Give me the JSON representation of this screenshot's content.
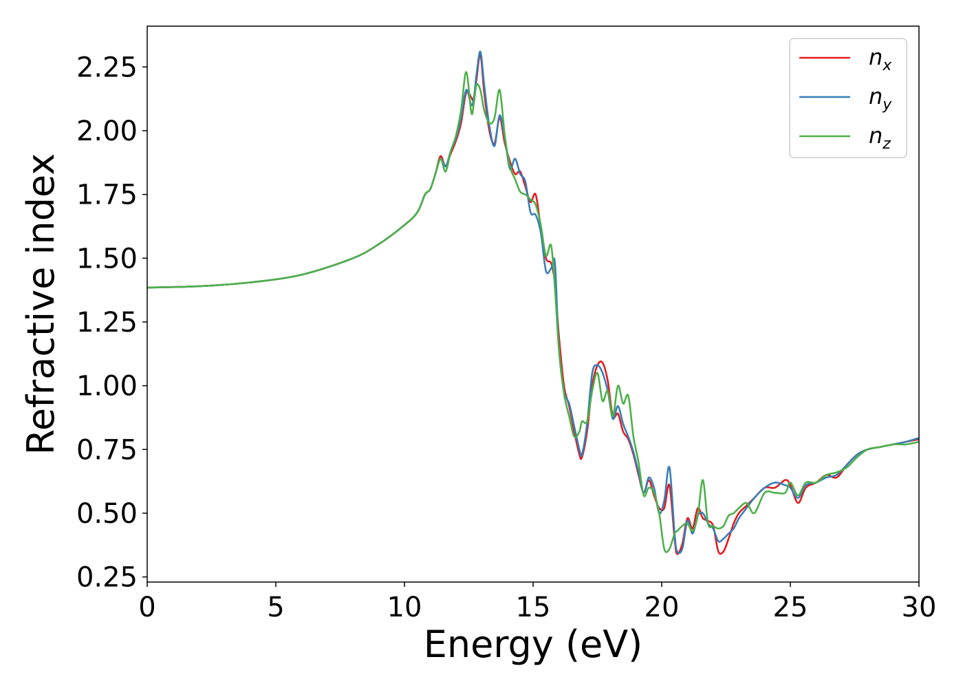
{
  "chart_data": {
    "type": "line",
    "title": "",
    "xlabel": "Energy (eV)",
    "ylabel": "Refractive index",
    "xlim": [
      0,
      30
    ],
    "ylim": [
      0.23,
      2.41
    ],
    "xticks": [
      0,
      5,
      10,
      15,
      20,
      25,
      30
    ],
    "yticks": [
      0.25,
      0.5,
      0.75,
      1.0,
      1.25,
      1.5,
      1.75,
      2.0,
      2.25
    ],
    "xtick_labels": [
      "0",
      "5",
      "10",
      "15",
      "20",
      "25",
      "30"
    ],
    "ytick_labels": [
      "0.25",
      "0.50",
      "0.75",
      "1.00",
      "1.25",
      "1.50",
      "1.75",
      "2.00",
      "2.25"
    ],
    "grid": false,
    "legend": {
      "placement": "top-right"
    },
    "series": [
      {
        "name": "n",
        "subscript": "x",
        "color": "#e41a1c",
        "points": [
          [
            0,
            1.385
          ],
          [
            2,
            1.39
          ],
          [
            4,
            1.405
          ],
          [
            6,
            1.435
          ],
          [
            8,
            1.5
          ],
          [
            9,
            1.555
          ],
          [
            10,
            1.63
          ],
          [
            10.5,
            1.68
          ],
          [
            10.8,
            1.75
          ],
          [
            11.0,
            1.77
          ],
          [
            11.2,
            1.83
          ],
          [
            11.4,
            1.9
          ],
          [
            11.6,
            1.86
          ],
          [
            11.8,
            1.91
          ],
          [
            12.0,
            1.96
          ],
          [
            12.2,
            2.03
          ],
          [
            12.4,
            2.15
          ],
          [
            12.6,
            2.13
          ],
          [
            12.7,
            2.12
          ],
          [
            12.8,
            2.2
          ],
          [
            12.95,
            2.3
          ],
          [
            13.1,
            2.15
          ],
          [
            13.3,
            2.0
          ],
          [
            13.5,
            1.95
          ],
          [
            13.7,
            2.05
          ],
          [
            13.9,
            1.95
          ],
          [
            14.1,
            1.88
          ],
          [
            14.3,
            1.83
          ],
          [
            14.5,
            1.84
          ],
          [
            14.7,
            1.78
          ],
          [
            14.9,
            1.72
          ],
          [
            15.1,
            1.75
          ],
          [
            15.3,
            1.62
          ],
          [
            15.5,
            1.5
          ],
          [
            15.7,
            1.48
          ],
          [
            15.85,
            1.4
          ],
          [
            16.0,
            1.2
          ],
          [
            16.2,
            1.0
          ],
          [
            16.4,
            0.92
          ],
          [
            16.6,
            0.82
          ],
          [
            16.8,
            0.73
          ],
          [
            16.9,
            0.72
          ],
          [
            17.1,
            0.82
          ],
          [
            17.3,
            1.0
          ],
          [
            17.5,
            1.08
          ],
          [
            17.7,
            1.09
          ],
          [
            17.9,
            1.02
          ],
          [
            18.1,
            0.88
          ],
          [
            18.3,
            0.89
          ],
          [
            18.5,
            0.82
          ],
          [
            18.7,
            0.79
          ],
          [
            18.9,
            0.73
          ],
          [
            19.1,
            0.65
          ],
          [
            19.3,
            0.58
          ],
          [
            19.5,
            0.63
          ],
          [
            19.7,
            0.57
          ],
          [
            19.9,
            0.52
          ],
          [
            20.1,
            0.52
          ],
          [
            20.3,
            0.61
          ],
          [
            20.5,
            0.4
          ],
          [
            20.6,
            0.34
          ],
          [
            20.8,
            0.38
          ],
          [
            21.0,
            0.48
          ],
          [
            21.2,
            0.44
          ],
          [
            21.4,
            0.52
          ],
          [
            21.6,
            0.48
          ],
          [
            21.8,
            0.47
          ],
          [
            22.0,
            0.45
          ],
          [
            22.2,
            0.35
          ],
          [
            22.4,
            0.35
          ],
          [
            22.6,
            0.4
          ],
          [
            22.8,
            0.46
          ],
          [
            23.0,
            0.5
          ],
          [
            23.3,
            0.53
          ],
          [
            23.6,
            0.56
          ],
          [
            24.0,
            0.6
          ],
          [
            24.4,
            0.6
          ],
          [
            24.8,
            0.63
          ],
          [
            25.0,
            0.61
          ],
          [
            25.3,
            0.54
          ],
          [
            25.6,
            0.6
          ],
          [
            26.0,
            0.62
          ],
          [
            26.4,
            0.65
          ],
          [
            26.8,
            0.64
          ],
          [
            27.2,
            0.69
          ],
          [
            27.6,
            0.73
          ],
          [
            28.0,
            0.75
          ],
          [
            28.5,
            0.76
          ],
          [
            29.0,
            0.77
          ],
          [
            29.5,
            0.78
          ],
          [
            30.0,
            0.79
          ]
        ]
      },
      {
        "name": "n",
        "subscript": "y",
        "color": "#377eb8",
        "points": [
          [
            0,
            1.385
          ],
          [
            2,
            1.39
          ],
          [
            4,
            1.405
          ],
          [
            6,
            1.435
          ],
          [
            8,
            1.5
          ],
          [
            9,
            1.555
          ],
          [
            10,
            1.63
          ],
          [
            10.5,
            1.68
          ],
          [
            10.8,
            1.75
          ],
          [
            11.0,
            1.77
          ],
          [
            11.2,
            1.83
          ],
          [
            11.4,
            1.89
          ],
          [
            11.6,
            1.86
          ],
          [
            11.8,
            1.92
          ],
          [
            12.0,
            1.97
          ],
          [
            12.2,
            2.05
          ],
          [
            12.4,
            2.16
          ],
          [
            12.6,
            2.1
          ],
          [
            12.7,
            2.13
          ],
          [
            12.8,
            2.22
          ],
          [
            12.95,
            2.31
          ],
          [
            13.1,
            2.18
          ],
          [
            13.3,
            2.02
          ],
          [
            13.5,
            1.94
          ],
          [
            13.7,
            2.06
          ],
          [
            13.9,
            1.97
          ],
          [
            14.1,
            1.85
          ],
          [
            14.3,
            1.89
          ],
          [
            14.5,
            1.83
          ],
          [
            14.7,
            1.8
          ],
          [
            14.9,
            1.68
          ],
          [
            15.1,
            1.67
          ],
          [
            15.3,
            1.6
          ],
          [
            15.5,
            1.45
          ],
          [
            15.7,
            1.46
          ],
          [
            15.85,
            1.48
          ],
          [
            16.0,
            1.15
          ],
          [
            16.2,
            0.98
          ],
          [
            16.4,
            0.93
          ],
          [
            16.6,
            0.84
          ],
          [
            16.8,
            0.75
          ],
          [
            16.9,
            0.73
          ],
          [
            17.1,
            0.85
          ],
          [
            17.3,
            1.05
          ],
          [
            17.5,
            1.08
          ],
          [
            17.7,
            1.05
          ],
          [
            17.9,
            0.98
          ],
          [
            18.1,
            0.87
          ],
          [
            18.3,
            0.92
          ],
          [
            18.5,
            0.85
          ],
          [
            18.7,
            0.8
          ],
          [
            18.9,
            0.74
          ],
          [
            19.1,
            0.66
          ],
          [
            19.3,
            0.58
          ],
          [
            19.5,
            0.64
          ],
          [
            19.7,
            0.6
          ],
          [
            19.9,
            0.5
          ],
          [
            20.1,
            0.55
          ],
          [
            20.3,
            0.68
          ],
          [
            20.5,
            0.42
          ],
          [
            20.6,
            0.35
          ],
          [
            20.8,
            0.36
          ],
          [
            21.0,
            0.47
          ],
          [
            21.2,
            0.42
          ],
          [
            21.4,
            0.49
          ],
          [
            21.6,
            0.5
          ],
          [
            21.8,
            0.46
          ],
          [
            22.0,
            0.44
          ],
          [
            22.2,
            0.39
          ],
          [
            22.4,
            0.4
          ],
          [
            22.6,
            0.42
          ],
          [
            22.8,
            0.44
          ],
          [
            23.0,
            0.48
          ],
          [
            23.3,
            0.52
          ],
          [
            23.6,
            0.56
          ],
          [
            24.0,
            0.6
          ],
          [
            24.4,
            0.62
          ],
          [
            24.8,
            0.61
          ],
          [
            25.0,
            0.6
          ],
          [
            25.3,
            0.56
          ],
          [
            25.6,
            0.61
          ],
          [
            26.0,
            0.62
          ],
          [
            26.4,
            0.64
          ],
          [
            26.8,
            0.65
          ],
          [
            27.2,
            0.69
          ],
          [
            27.6,
            0.73
          ],
          [
            28.0,
            0.75
          ],
          [
            28.5,
            0.76
          ],
          [
            29.0,
            0.77
          ],
          [
            29.5,
            0.78
          ],
          [
            30.0,
            0.795
          ]
        ]
      },
      {
        "name": "n",
        "subscript": "z",
        "color": "#4daf4a",
        "points": [
          [
            0,
            1.385
          ],
          [
            2,
            1.39
          ],
          [
            4,
            1.405
          ],
          [
            6,
            1.435
          ],
          [
            8,
            1.5
          ],
          [
            9,
            1.555
          ],
          [
            10,
            1.63
          ],
          [
            10.5,
            1.68
          ],
          [
            10.8,
            1.75
          ],
          [
            11.0,
            1.77
          ],
          [
            11.2,
            1.83
          ],
          [
            11.4,
            1.89
          ],
          [
            11.6,
            1.84
          ],
          [
            11.8,
            1.92
          ],
          [
            12.0,
            1.98
          ],
          [
            12.2,
            2.08
          ],
          [
            12.4,
            2.23
          ],
          [
            12.6,
            2.07
          ],
          [
            12.7,
            2.11
          ],
          [
            12.8,
            2.18
          ],
          [
            12.95,
            2.16
          ],
          [
            13.1,
            2.08
          ],
          [
            13.3,
            2.03
          ],
          [
            13.5,
            2.05
          ],
          [
            13.7,
            2.16
          ],
          [
            13.9,
            1.98
          ],
          [
            14.1,
            1.86
          ],
          [
            14.3,
            1.81
          ],
          [
            14.5,
            1.76
          ],
          [
            14.7,
            1.75
          ],
          [
            14.9,
            1.73
          ],
          [
            15.1,
            1.71
          ],
          [
            15.3,
            1.63
          ],
          [
            15.5,
            1.51
          ],
          [
            15.7,
            1.55
          ],
          [
            15.85,
            1.38
          ],
          [
            16.0,
            1.15
          ],
          [
            16.2,
            0.97
          ],
          [
            16.4,
            0.88
          ],
          [
            16.6,
            0.8
          ],
          [
            16.8,
            0.82
          ],
          [
            16.9,
            0.86
          ],
          [
            17.1,
            0.86
          ],
          [
            17.3,
            0.98
          ],
          [
            17.5,
            1.05
          ],
          [
            17.7,
            0.94
          ],
          [
            17.9,
            0.98
          ],
          [
            18.1,
            0.88
          ],
          [
            18.3,
            1.0
          ],
          [
            18.5,
            0.93
          ],
          [
            18.7,
            0.96
          ],
          [
            18.9,
            0.8
          ],
          [
            19.1,
            0.7
          ],
          [
            19.3,
            0.57
          ],
          [
            19.5,
            0.6
          ],
          [
            19.7,
            0.58
          ],
          [
            19.9,
            0.5
          ],
          [
            20.1,
            0.36
          ],
          [
            20.3,
            0.36
          ],
          [
            20.5,
            0.42
          ],
          [
            20.6,
            0.43
          ],
          [
            20.8,
            0.45
          ],
          [
            21.0,
            0.46
          ],
          [
            21.2,
            0.43
          ],
          [
            21.4,
            0.49
          ],
          [
            21.6,
            0.63
          ],
          [
            21.8,
            0.46
          ],
          [
            22.0,
            0.45
          ],
          [
            22.2,
            0.44
          ],
          [
            22.4,
            0.45
          ],
          [
            22.6,
            0.49
          ],
          [
            22.8,
            0.5
          ],
          [
            23.0,
            0.52
          ],
          [
            23.3,
            0.54
          ],
          [
            23.6,
            0.5
          ],
          [
            24.0,
            0.58
          ],
          [
            24.4,
            0.58
          ],
          [
            24.8,
            0.58
          ],
          [
            25.0,
            0.62
          ],
          [
            25.3,
            0.57
          ],
          [
            25.6,
            0.62
          ],
          [
            26.0,
            0.62
          ],
          [
            26.4,
            0.65
          ],
          [
            26.8,
            0.66
          ],
          [
            27.2,
            0.68
          ],
          [
            27.6,
            0.72
          ],
          [
            28.0,
            0.75
          ],
          [
            28.5,
            0.76
          ],
          [
            29.0,
            0.77
          ],
          [
            29.5,
            0.77
          ],
          [
            30.0,
            0.78
          ]
        ]
      }
    ]
  }
}
